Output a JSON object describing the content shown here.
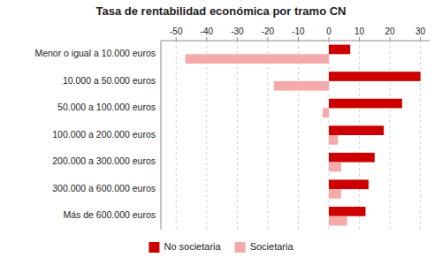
{
  "chart_data": {
    "type": "bar",
    "orientation": "horizontal",
    "title": "Tasa de rentabilidad económica por tramo CN",
    "categories": [
      "Menor o igual a 10.000 euros",
      "10.000 a 50.000 euros",
      "50.000 a 100.000 euros",
      "100.000 a 200.000 euros",
      "200.000 a 300.000 euros",
      "300.000 a 600.000 euros",
      "Más de 600.000 euros"
    ],
    "series": [
      {
        "name": "No societaria",
        "color": "#cc0000",
        "values": [
          7,
          30,
          24,
          18,
          15,
          13,
          12
        ]
      },
      {
        "name": "Societaria",
        "color": "#f5a9a9",
        "values": [
          -47,
          -18,
          -2,
          3,
          4,
          4,
          6
        ]
      }
    ],
    "xlim": [
      -55,
      33
    ],
    "xticks": [
      -50,
      -40,
      -30,
      -20,
      -10,
      0,
      10,
      20,
      30
    ],
    "grid": true,
    "legend": "bottom"
  }
}
